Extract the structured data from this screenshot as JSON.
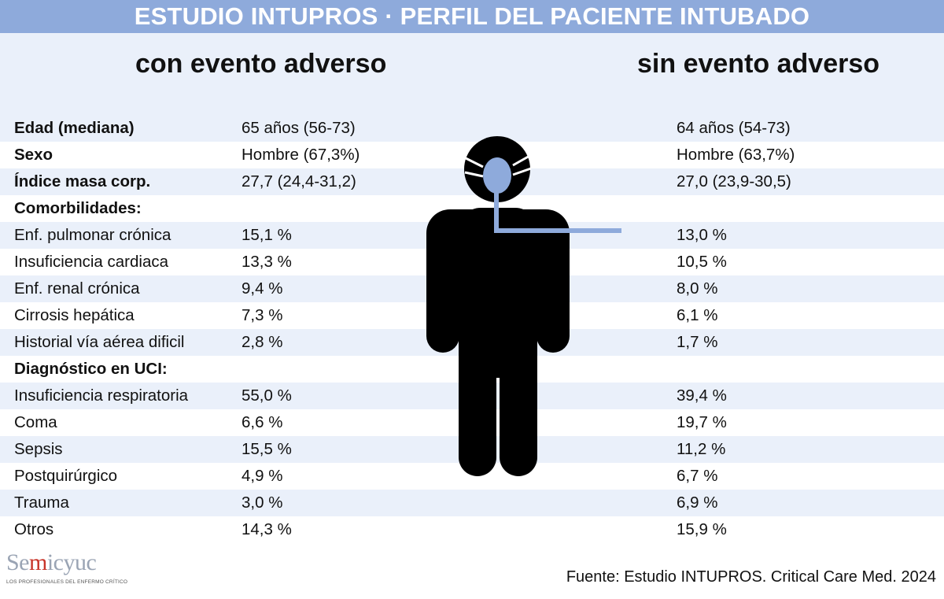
{
  "title": "ESTUDIO INTUPROS · PERFIL DEL PACIENTE INTUBADO",
  "headers": {
    "with_event": "con evento adverso",
    "without_event": "sin evento adverso"
  },
  "rows": [
    {
      "label": "Edad (mediana)",
      "with": "65 años (56-73)",
      "without": "64 años (54-73)"
    },
    {
      "label": "Sexo",
      "with": "Hombre (67,3%)",
      "without": "Hombre (63,7%)"
    },
    {
      "label": "Índice masa corp.",
      "with": "27,7 (24,4-31,2)",
      "without": "27,0 (23,9-30,5)"
    },
    {
      "label": "Comorbilidades:",
      "with": "",
      "without": ""
    },
    {
      "label": "Enf. pulmonar crónica",
      "with": "15,1 %",
      "without": "13,0 %"
    },
    {
      "label": "Insuficiencia cardiaca",
      "with": "13,3 %",
      "without": "10,5 %"
    },
    {
      "label": "Enf. renal crónica",
      "with": "9,4 %",
      "without": "8,0 %"
    },
    {
      "label": "Cirrosis hepática",
      "with": "7,3 %",
      "without": "6,1 %"
    },
    {
      "label": "Historial vía aérea dificil",
      "with": "2,8 %",
      "without": "1,7 %"
    },
    {
      "label": "Diagnóstico en UCI:",
      "with": "",
      "without": ""
    },
    {
      "label": "Insuficiencia respiratoria",
      "with": "55,0 %",
      "without": "39,4 %"
    },
    {
      "label": "Coma",
      "with": "6,6 %",
      "without": "19,7 %"
    },
    {
      "label": "Sepsis",
      "with": "15,5 %",
      "without": "11,2 %"
    },
    {
      "label": "Postquirúrgico",
      "with": "4,9 %",
      "without": "6,7 %"
    },
    {
      "label": "Trauma",
      "with": "3,0 %",
      "without": "6,9 %"
    },
    {
      "label": "Otros",
      "with": "14,3 %",
      "without": "15,9 %"
    }
  ],
  "logo": {
    "brand": "Semicyuc",
    "tagline": "LOS PROFESIONALES DEL ENFERMO CRÍTICO"
  },
  "source": "Fuente: Estudio INTUPROS. Critical Care Med. 2024",
  "colors": {
    "title_bar": "#8eaadb",
    "panel": "#eaf0fa",
    "tube": "#8eaadb"
  }
}
